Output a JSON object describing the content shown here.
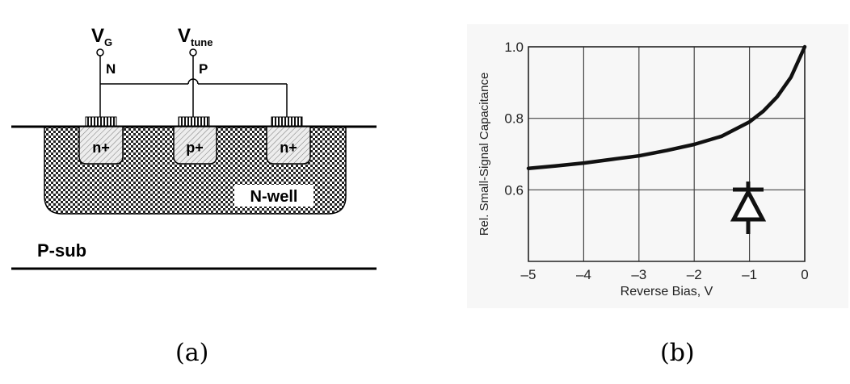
{
  "diagram": {
    "terminal_vg": "V",
    "terminal_vg_sub": "G",
    "terminal_vg_type": "N",
    "terminal_vtune": "V",
    "terminal_vtune_sub": "tune",
    "terminal_vtune_type": "P",
    "region_left": "n+",
    "region_center": "p+",
    "region_right": "n+",
    "well_label": "N-well",
    "substrate_label": "P-sub"
  },
  "chart_data": {
    "type": "line",
    "title": "",
    "xlabel": "Reverse Bias, V",
    "ylabel": "Rel. Small-Signal Capacitance",
    "xlim": [
      -5,
      0
    ],
    "ylim": [
      0.4,
      1.0
    ],
    "x_ticks": [
      "–5",
      "–4",
      "–3",
      "–2",
      "–1",
      "0"
    ],
    "y_ticks": [
      "0.6",
      "0.8",
      "1.0"
    ],
    "grid": true,
    "series": [
      {
        "name": "capacitance",
        "x": [
          -5,
          -4.5,
          -4,
          -3.5,
          -3,
          -2.5,
          -2,
          -1.5,
          -1,
          -0.75,
          -0.5,
          -0.25,
          0
        ],
        "y": [
          0.66,
          0.667,
          0.675,
          0.685,
          0.695,
          0.71,
          0.727,
          0.75,
          0.79,
          0.82,
          0.86,
          0.915,
          1.0
        ]
      }
    ],
    "annotation": "diode-symbol"
  },
  "captions": {
    "a": "(a)",
    "b": "(b)"
  }
}
